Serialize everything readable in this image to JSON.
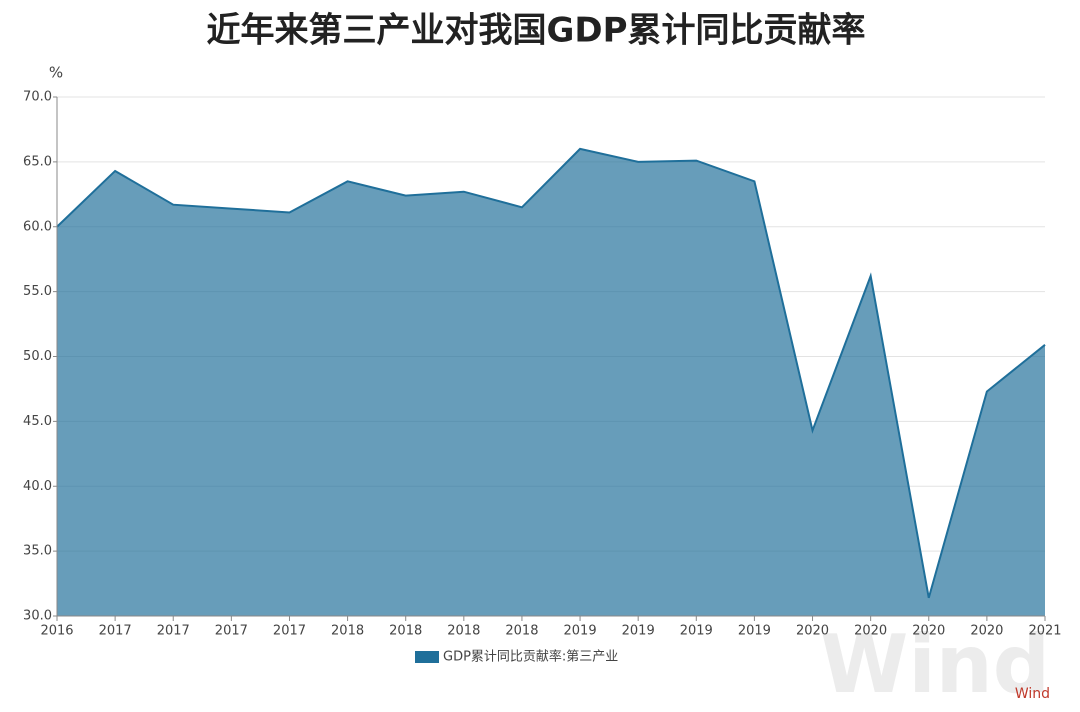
{
  "chart_data": {
    "type": "area",
    "title": "近年来第三产业对我国GDP累计同比贡献率",
    "y_unit": "%",
    "categories": [
      "2016",
      "2017",
      "2017",
      "2017",
      "2017",
      "2018",
      "2018",
      "2018",
      "2018",
      "2019",
      "2019",
      "2019",
      "2019",
      "2020",
      "2020",
      "2020",
      "2020",
      "2021"
    ],
    "series": [
      {
        "name": "GDP累计同比贡献率:第三产业",
        "color": "#1f6f9a",
        "values": [
          60.0,
          64.3,
          61.7,
          61.4,
          61.1,
          63.5,
          62.4,
          62.7,
          61.5,
          66.0,
          65.0,
          65.1,
          63.5,
          44.3,
          56.2,
          31.4,
          47.3,
          50.9
        ]
      }
    ],
    "ylim": [
      30,
      70
    ],
    "yticks": [
      {
        "value": 30,
        "label": "30.0"
      },
      {
        "value": 35,
        "label": "35.0"
      },
      {
        "value": 40,
        "label": "40.0"
      },
      {
        "value": 45,
        "label": "45.0"
      },
      {
        "value": 50,
        "label": "50.0"
      },
      {
        "value": 55,
        "label": "55.0"
      },
      {
        "value": 60,
        "label": "60.0"
      },
      {
        "value": 65,
        "label": "65.0"
      },
      {
        "value": 70,
        "label": "70.0"
      }
    ],
    "grid": true,
    "legend": "bottom",
    "source": "Wind"
  }
}
